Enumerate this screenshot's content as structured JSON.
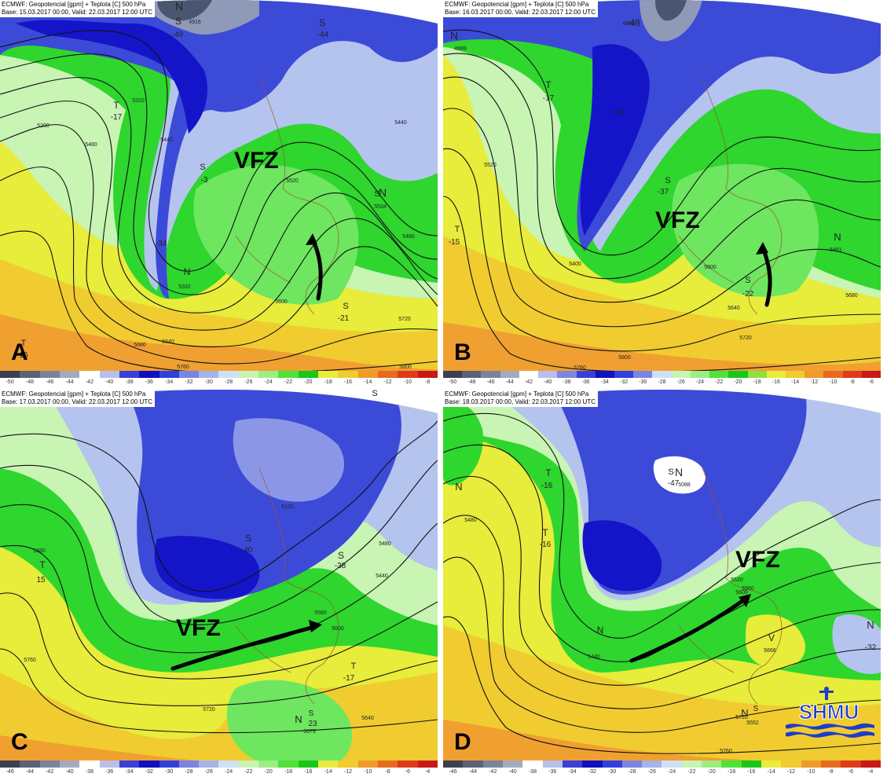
{
  "panels": [
    {
      "id": "A",
      "header_line1": "ECMWF: Geopotencial [gpm] + Teplota [C] 500 hPa",
      "header_line2": "Base: 15.03.2017 00:00, Valid: 22.03.2017 12:00 UTC",
      "letter": "A",
      "vfz_label": "VFZ",
      "labels": [
        "N",
        "S",
        "-49",
        "4916",
        "S",
        "-44",
        "T",
        "-17",
        "S",
        "-3",
        "-34",
        "N",
        "5332",
        "S",
        "N",
        "5534",
        "S",
        "-21",
        "T",
        "16",
        "5200",
        "5320",
        "5480",
        "5440",
        "5520",
        "5440",
        "5480",
        "5600",
        "5640",
        "5680",
        "5760",
        "5800",
        "5720"
      ]
    },
    {
      "id": "B",
      "header_line1": "ECMWF: Geopotencial [gpm] + Teplota [C] 500 hPa",
      "header_line2": "Base: 16.03.2017 00:00, Valid: 22.03.2017 12:00 UTC",
      "letter": "B",
      "vfz_label": "VFZ",
      "labels": [
        "N",
        "4999",
        "4993",
        "-48",
        "T",
        "-17",
        "S",
        "-37",
        "T",
        "-15",
        "N",
        "5481",
        "S",
        "-22",
        "5520",
        "5440",
        "5400",
        "5600",
        "5680",
        "5640",
        "5720",
        "5760",
        "5800"
      ]
    },
    {
      "id": "C",
      "header_line1": "ECMWF: Geopotencial [gpm] + Teplota [C] 500 hPa",
      "header_line2": "Base: 17.03.2017 00:00, Valid: 22.03.2017 12:00 UTC",
      "letter": "C",
      "vfz_label": "VFZ",
      "labels": [
        "S",
        "T",
        "15",
        "S",
        "-40",
        "S",
        "-38",
        "T",
        "-17",
        "N",
        "S",
        "23",
        "5679",
        "5680",
        "5640",
        "5440",
        "5480",
        "5560",
        "5600",
        "5720",
        "5760",
        "6120"
      ]
    },
    {
      "id": "D",
      "header_line1": "ECMWF: Geopotencial [gpm] + Teplota [C] 500 hPa",
      "header_line2": "Base: 18.03.2017 00:00, Valid: 22.03.2017 12:00 UTC",
      "letter": "D",
      "vfz_label": "VFZ",
      "labels": [
        "N",
        "T",
        "-16",
        "T",
        "-16",
        "S",
        "N",
        "-47",
        "5088",
        "N",
        "V",
        "5666",
        "N",
        "S",
        "5552",
        "N",
        "-32",
        "5480",
        "5440",
        "5520",
        "5560",
        "5600",
        "5720",
        "5760"
      ]
    }
  ],
  "colorbars": {
    "top_left": [
      "-50",
      "-48",
      "-46",
      "-44",
      "-42",
      "-40",
      "-38",
      "-36",
      "-34",
      "-32",
      "-30",
      "-28",
      "-26",
      "-24",
      "-22",
      "-20",
      "-18",
      "-16",
      "-14",
      "-12",
      "-10",
      "-8"
    ],
    "top_right": [
      "-50",
      "-48",
      "-46",
      "-44",
      "-42",
      "-40",
      "-38",
      "-36",
      "-34",
      "-32",
      "-30",
      "-28",
      "-26",
      "-24",
      "-22",
      "-20",
      "-18",
      "-16",
      "-14",
      "-12",
      "-10",
      "-8",
      "-6"
    ],
    "bottom_left": [
      "-46",
      "-44",
      "-42",
      "-40",
      "-38",
      "-36",
      "-34",
      "-32",
      "-30",
      "-28",
      "-26",
      "-24",
      "-22",
      "-20",
      "-18",
      "-16",
      "-14",
      "-12",
      "-10",
      "-8",
      "-6",
      "-4"
    ],
    "bottom_right": [
      "-46",
      "-44",
      "-42",
      "-40",
      "-38",
      "-36",
      "-34",
      "-32",
      "-30",
      "-28",
      "-26",
      "-24",
      "-22",
      "-20",
      "-18",
      "-16",
      "-14",
      "-12",
      "-10",
      "-8",
      "-6",
      "-4"
    ]
  },
  "colors": {
    "very_cold": "#4a5570",
    "cold_gray": "#8e9ab8",
    "deep_blue": "#1414c8",
    "blue": "#3c4ad8",
    "light_blue": "#8c96e6",
    "pale_blue": "#b4c4ee",
    "pale_green": "#b4f0a0",
    "green": "#2ed62e",
    "mid_green": "#6ee660",
    "yellow": "#f0f02a",
    "orange": "#f0a030",
    "dark_orange": "#e87a20",
    "red": "#e02020"
  },
  "logo": {
    "text": "SHMU",
    "icon": "shmu-logo-icon",
    "color": "#1e3cc8"
  }
}
